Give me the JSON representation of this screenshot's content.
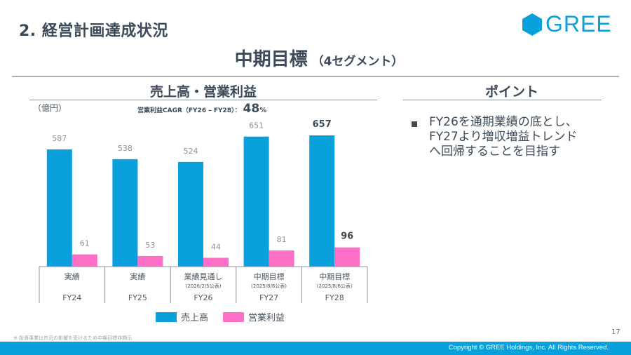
{
  "header": {
    "section_title": "2. 経営計画達成状況",
    "logo_text": "GREE",
    "main_title": "中期目標",
    "main_subtitle": "（4セグメント）"
  },
  "colors": {
    "revenue": "#0aa0dc",
    "operating_profit": "#ff6ec7",
    "brand": "#0aa0dc",
    "text": "#3c4a5a"
  },
  "chart_panel": {
    "heading": "売上高・営業利益",
    "unit": "（億円）",
    "cagr_label": "営業利益CAGR（FY26 – FY28）：",
    "cagr_value": "48",
    "cagr_unit": "%"
  },
  "chart_data": {
    "type": "bar",
    "title": "売上高・営業利益",
    "ylabel": "（億円）",
    "xlabel": "",
    "ylim": [
      0,
      660
    ],
    "grid": false,
    "legend_position": "bottom",
    "categories": [
      "FY24",
      "FY25",
      "FY26",
      "FY27",
      "FY28"
    ],
    "category_types": [
      "実績",
      "実績",
      "業績見通し",
      "中期目標",
      "中期目標"
    ],
    "category_notes": [
      "",
      "",
      "(2026/2/5公表)",
      "(2025/8/6公表)",
      "(2025/8/6公表)"
    ],
    "series": [
      {
        "name": "売上高",
        "values": [
          587,
          538,
          524,
          651,
          657
        ],
        "labels": [
          "587",
          "538",
          "524",
          "651",
          "657"
        ]
      },
      {
        "name": "営業利益",
        "values": [
          61,
          53,
          44,
          81,
          96
        ],
        "labels": [
          "61",
          "53",
          "44",
          "81",
          "96"
        ]
      }
    ],
    "emphasized_category": "FY28"
  },
  "legend": {
    "items": [
      {
        "label": "売上高"
      },
      {
        "label": "営業利益"
      }
    ]
  },
  "points_panel": {
    "heading": "ポイント",
    "bullets": [
      {
        "lines": [
          "FY26を通期業績の底とし、",
          "FY27より増収増益トレンド",
          "へ回帰することを目指す"
        ]
      }
    ]
  },
  "footer": {
    "footnote": "※ 投資事業は市況の影響を受けるため中期目標非開示",
    "page_number": "17",
    "copyright": "Copyright © GREE Holdings, Inc. All Rights Reserved."
  }
}
